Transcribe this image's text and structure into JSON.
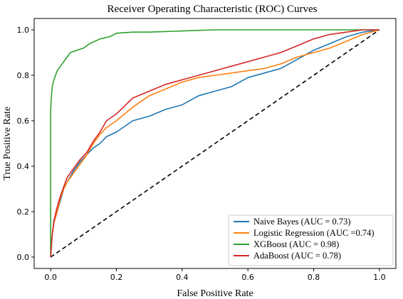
{
  "chart_data": {
    "type": "line",
    "title": "Receiver Operating Characteristic (ROC) Curves",
    "xlabel": "False Positive Rate",
    "ylabel": "True Positive Rate",
    "xlim": [
      -0.05,
      1.05
    ],
    "ylim": [
      -0.05,
      1.05
    ],
    "xticks": [
      "0.0",
      "0.2",
      "0.4",
      "0.6",
      "0.8",
      "1.0"
    ],
    "yticks": [
      "0.0",
      "0.2",
      "0.4",
      "0.6",
      "0.8",
      "1.0"
    ],
    "grid": false,
    "legend_position": "lower-right",
    "series": [
      {
        "name": "Naive Bayes (AUC = 0.73)",
        "color": "#1f77b4",
        "x": [
          0.0,
          0.005,
          0.01,
          0.02,
          0.03,
          0.04,
          0.05,
          0.07,
          0.09,
          0.11,
          0.13,
          0.15,
          0.17,
          0.2,
          0.25,
          0.3,
          0.35,
          0.4,
          0.45,
          0.5,
          0.55,
          0.6,
          0.65,
          0.7,
          0.75,
          0.8,
          0.85,
          0.9,
          0.95,
          1.0
        ],
        "y": [
          0.0,
          0.1,
          0.15,
          0.2,
          0.25,
          0.3,
          0.33,
          0.38,
          0.42,
          0.45,
          0.48,
          0.5,
          0.53,
          0.55,
          0.6,
          0.62,
          0.65,
          0.67,
          0.71,
          0.73,
          0.75,
          0.79,
          0.81,
          0.83,
          0.87,
          0.91,
          0.94,
          0.97,
          0.99,
          1.0
        ]
      },
      {
        "name": "Logistic Regression (AUC =0.74)",
        "color": "#ff7f0e",
        "x": [
          0.0,
          0.005,
          0.01,
          0.02,
          0.03,
          0.04,
          0.05,
          0.07,
          0.09,
          0.11,
          0.13,
          0.15,
          0.17,
          0.2,
          0.25,
          0.3,
          0.35,
          0.4,
          0.45,
          0.5,
          0.55,
          0.6,
          0.65,
          0.7,
          0.75,
          0.8,
          0.85,
          0.9,
          0.95,
          1.0
        ],
        "y": [
          0.0,
          0.1,
          0.15,
          0.2,
          0.26,
          0.3,
          0.33,
          0.37,
          0.41,
          0.45,
          0.5,
          0.54,
          0.57,
          0.6,
          0.66,
          0.71,
          0.74,
          0.77,
          0.79,
          0.8,
          0.81,
          0.82,
          0.83,
          0.85,
          0.88,
          0.9,
          0.92,
          0.95,
          0.98,
          1.0
        ]
      },
      {
        "name": "XGBoost (AUC = 0.98)",
        "color": "#2ca02c",
        "x": [
          0.0,
          0.0,
          0.002,
          0.005,
          0.01,
          0.015,
          0.02,
          0.03,
          0.04,
          0.05,
          0.06,
          0.08,
          0.1,
          0.12,
          0.15,
          0.18,
          0.2,
          0.25,
          0.3,
          0.4,
          0.5,
          0.6,
          0.7,
          0.8,
          0.9,
          1.0
        ],
        "y": [
          0.0,
          0.64,
          0.7,
          0.75,
          0.78,
          0.8,
          0.82,
          0.84,
          0.86,
          0.88,
          0.9,
          0.91,
          0.92,
          0.94,
          0.96,
          0.97,
          0.985,
          0.99,
          0.99,
          0.995,
          1.0,
          1.0,
          1.0,
          1.0,
          1.0,
          1.0
        ]
      },
      {
        "name": "AdaBoost (AUC = 0.78)",
        "color": "#d62728",
        "x": [
          0.0,
          0.005,
          0.01,
          0.02,
          0.03,
          0.04,
          0.05,
          0.07,
          0.09,
          0.11,
          0.13,
          0.15,
          0.17,
          0.2,
          0.25,
          0.3,
          0.35,
          0.4,
          0.45,
          0.5,
          0.55,
          0.6,
          0.65,
          0.7,
          0.75,
          0.8,
          0.85,
          0.9,
          0.95,
          1.0
        ],
        "y": [
          0.0,
          0.1,
          0.16,
          0.22,
          0.27,
          0.31,
          0.35,
          0.39,
          0.43,
          0.46,
          0.51,
          0.55,
          0.6,
          0.63,
          0.7,
          0.73,
          0.76,
          0.78,
          0.8,
          0.82,
          0.84,
          0.86,
          0.88,
          0.9,
          0.93,
          0.96,
          0.98,
          0.99,
          1.0,
          1.0
        ]
      }
    ],
    "reference_line": {
      "x": [
        0,
        1
      ],
      "y": [
        0,
        1
      ],
      "color": "#000000",
      "style": "dashed"
    }
  }
}
